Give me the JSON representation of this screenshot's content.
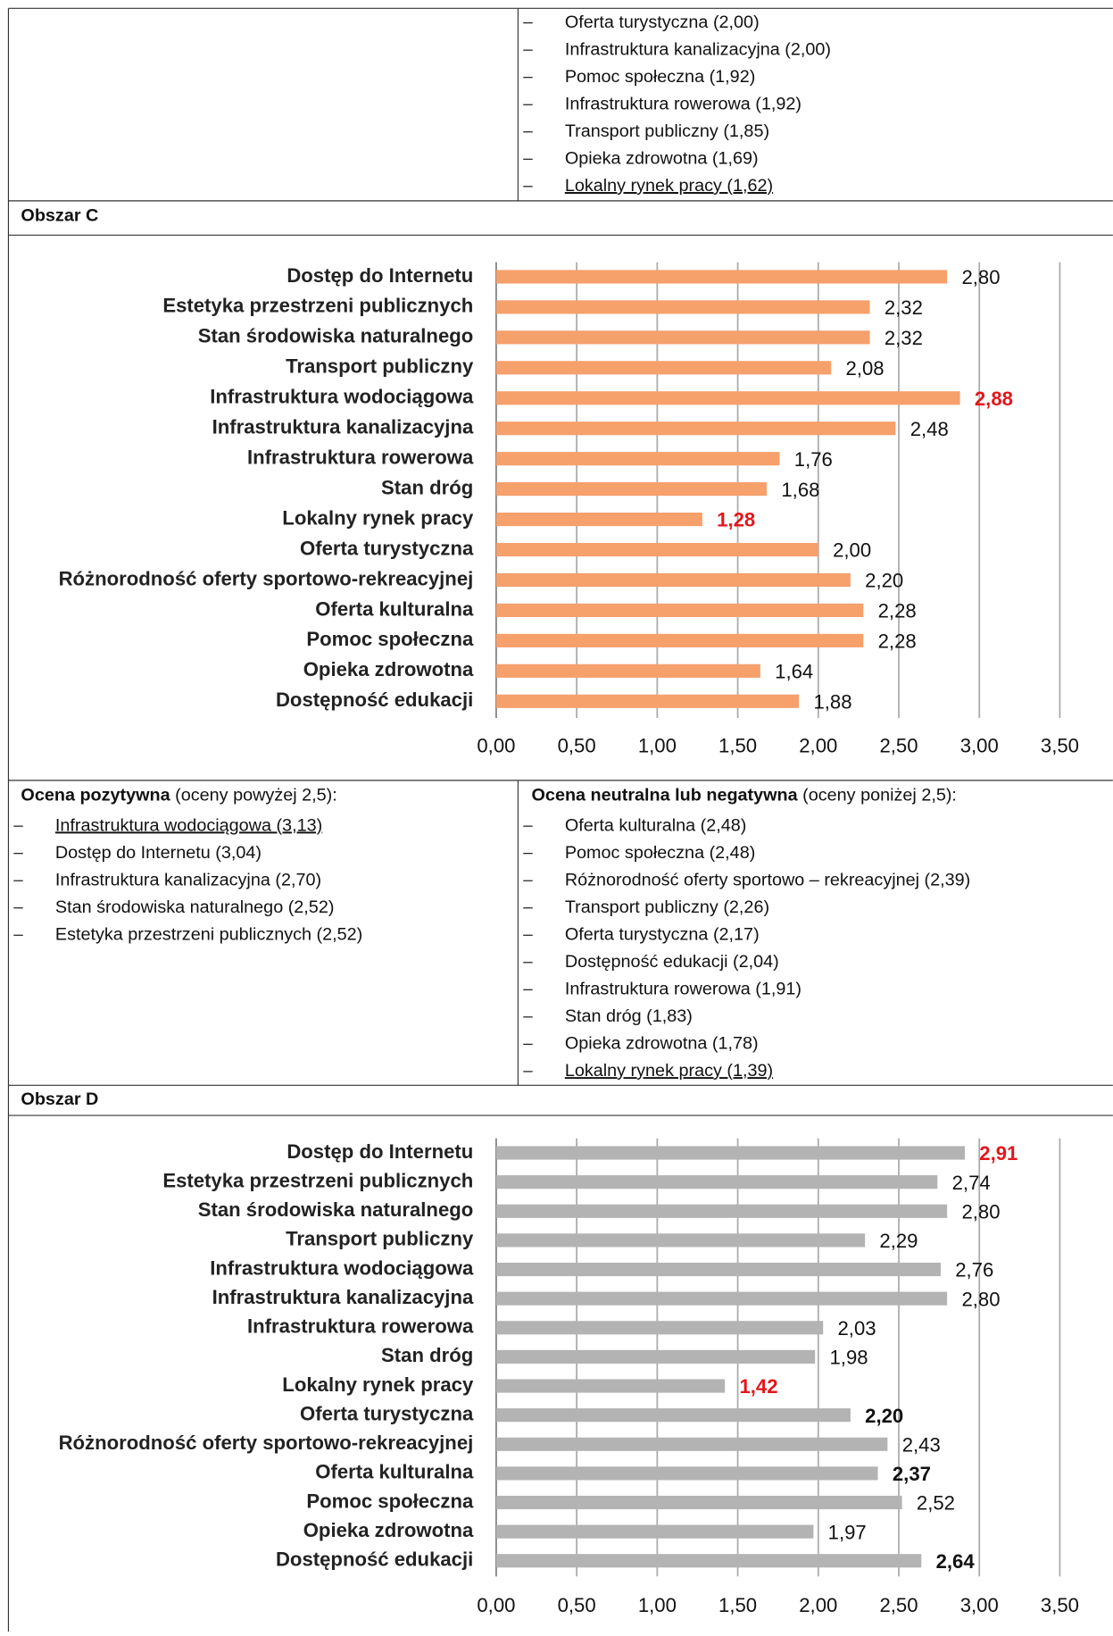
{
  "top_list": [
    "Oferta turystyczna (2,00)",
    "Infrastruktura kanalizacyjna (2,00)",
    "Pomoc społeczna (1,92)",
    "Infrastruktura rowerowa (1,92)",
    "Transport publiczny (1,85)",
    "Opieka zdrowotna (1,69)",
    "Lokalny rynek pracy (1,62)"
  ],
  "section_c": {
    "heading": "Obszar C"
  },
  "ratings_c": {
    "positive": {
      "title": "Ocena pozytywna",
      "note": " (oceny powyżej 2,5):",
      "items": [
        "Infrastruktura wodociągowa (3,13)",
        "Dostęp do Internetu (3,04)",
        "Infrastruktura kanalizacyjna (2,70)",
        "Stan środowiska naturalnego (2,52)",
        "Estetyka przestrzeni publicznych (2,52)"
      ]
    },
    "negative": {
      "title": "Ocena neutralna lub negatywna",
      "note": " (oceny poniżej 2,5):",
      "items": [
        "Oferta kulturalna (2,48)",
        "Pomoc społeczna (2,48)",
        "Różnorodność oferty sportowo – rekreacyjnej (2,39)",
        "Transport publiczny (2,26)",
        "Oferta turystyczna (2,17)",
        "Dostępność edukacji (2,04)",
        "Infrastruktura rowerowa (1,91)",
        "Stan dróg (1,83)",
        "Opieka zdrowotna (1,78)",
        "Lokalny rynek pracy (1,39)"
      ]
    }
  },
  "section_d": {
    "heading": "Obszar D"
  },
  "chart_data": [
    {
      "type": "hbar",
      "categories": [
        "Dostęp do Internetu",
        "Estetyka przestrzeni publicznych",
        "Stan środowiska naturalnego",
        "Transport publiczny",
        "Infrastruktura wodociągowa",
        "Infrastruktura kanalizacyjna",
        "Infrastruktura rowerowa",
        "Stan dróg",
        "Lokalny rynek pracy",
        "Oferta turystyczna",
        "Różnorodność oferty sportowo-rekreacyjnej",
        "Oferta kulturalna",
        "Pomoc społeczna",
        "Opieka zdrowotna",
        "Dostępność edukacji"
      ],
      "values": [
        2.8,
        2.32,
        2.32,
        2.08,
        2.88,
        2.48,
        1.76,
        1.68,
        1.28,
        2.0,
        2.2,
        2.28,
        2.28,
        1.64,
        1.88
      ],
      "value_labels": [
        "2,80",
        "2,32",
        "2,32",
        "2,08",
        "2,88",
        "2,48",
        "1,76",
        "1,68",
        "1,28",
        "2,00",
        "2,20",
        "2,28",
        "2,28",
        "1,64",
        "1,88"
      ],
      "value_label_colors": [
        "#111",
        "#111",
        "#111",
        "#111",
        "#e3161b",
        "#111",
        "#111",
        "#111",
        "#e3161b",
        "#111",
        "#111",
        "#111",
        "#111",
        "#111",
        "#111"
      ],
      "value_label_bold": [
        false,
        false,
        false,
        false,
        true,
        false,
        false,
        false,
        true,
        false,
        false,
        false,
        false,
        false,
        false
      ],
      "color": "#f6a06c",
      "xlim": [
        0,
        3.5
      ],
      "xticks": [
        {
          "value": 0,
          "label": "0,00"
        },
        {
          "value": 0.5,
          "label": "0,50"
        },
        {
          "value": 1,
          "label": "1,00"
        },
        {
          "value": 1.5,
          "label": "1,50"
        },
        {
          "value": 2,
          "label": "2,00"
        },
        {
          "value": 2.5,
          "label": "2,50"
        },
        {
          "value": 3,
          "label": "3,00"
        },
        {
          "value": 3.5,
          "label": "3,50"
        }
      ],
      "grid": true
    },
    {
      "type": "hbar",
      "categories": [
        "Dostęp do Internetu",
        "Estetyka przestrzeni publicznych",
        "Stan środowiska naturalnego",
        "Transport publiczny",
        "Infrastruktura wodociągowa",
        "Infrastruktura kanalizacyjna",
        "Infrastruktura rowerowa",
        "Stan dróg",
        "Lokalny rynek pracy",
        "Oferta turystyczna",
        "Różnorodność oferty sportowo-rekreacyjnej",
        "Oferta kulturalna",
        "Pomoc społeczna",
        "Opieka zdrowotna",
        "Dostępność edukacji"
      ],
      "values": [
        2.91,
        2.74,
        2.8,
        2.29,
        2.76,
        2.8,
        2.03,
        1.98,
        1.42,
        2.2,
        2.43,
        2.37,
        2.52,
        1.97,
        2.64
      ],
      "value_labels": [
        "2,91",
        "2,74",
        "2,80",
        "2,29",
        "2,76",
        "2,80",
        "2,03",
        "1,98",
        "1,42",
        "2,20",
        "2,43",
        "2,37",
        "2,52",
        "1,97",
        "2,64"
      ],
      "value_label_colors": [
        "#e3161b",
        "#111",
        "#111",
        "#111",
        "#111",
        "#111",
        "#111",
        "#111",
        "#e3161b",
        "#111",
        "#111",
        "#111",
        "#111",
        "#111",
        "#111"
      ],
      "value_label_bold": [
        true,
        false,
        false,
        false,
        false,
        false,
        false,
        false,
        true,
        true,
        false,
        true,
        false,
        false,
        true
      ],
      "color": "#b3b3b3",
      "xlim": [
        0,
        3.5
      ],
      "xticks": [
        {
          "value": 0,
          "label": "0,00"
        },
        {
          "value": 0.5,
          "label": "0,50"
        },
        {
          "value": 1,
          "label": "1,00"
        },
        {
          "value": 1.5,
          "label": "1,50"
        },
        {
          "value": 2,
          "label": "2,00"
        },
        {
          "value": 2.5,
          "label": "2,50"
        },
        {
          "value": 3,
          "label": "3,00"
        },
        {
          "value": 3.5,
          "label": "3,50"
        }
      ],
      "grid": true
    }
  ]
}
